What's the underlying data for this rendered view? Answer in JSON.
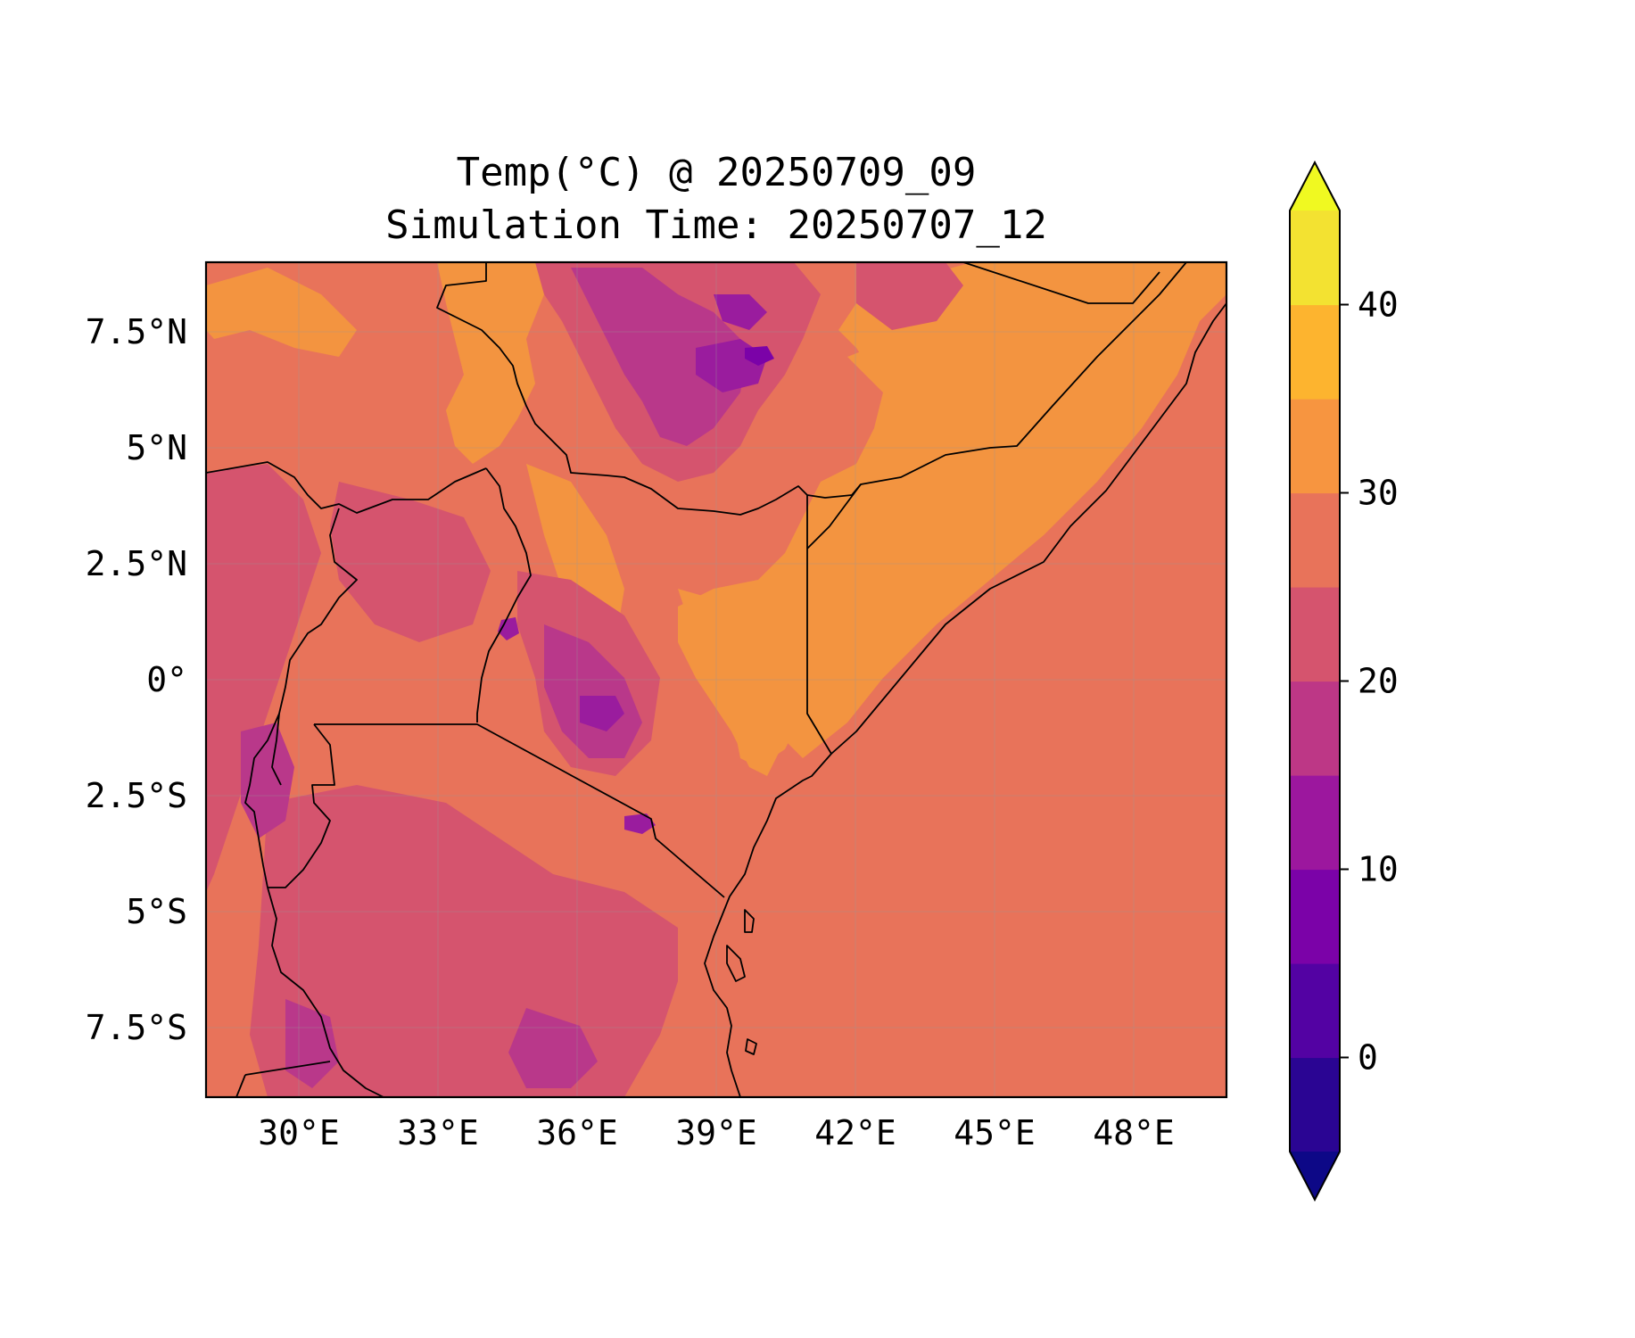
{
  "title": {
    "line1": "Temp(°C) @ 20250709_09",
    "line2": "Simulation Time: 20250707_12"
  },
  "map": {
    "lon_range": [
      28,
      50
    ],
    "lat_range": [
      -9,
      9
    ],
    "x_ticks": [
      {
        "value": 30,
        "label": "30°E"
      },
      {
        "value": 33,
        "label": "33°E"
      },
      {
        "value": 36,
        "label": "36°E"
      },
      {
        "value": 39,
        "label": "39°E"
      },
      {
        "value": 42,
        "label": "42°E"
      },
      {
        "value": 45,
        "label": "45°E"
      },
      {
        "value": 48,
        "label": "48°E"
      }
    ],
    "y_ticks": [
      {
        "value": 7.5,
        "label": "7.5°N"
      },
      {
        "value": 5,
        "label": "5°N"
      },
      {
        "value": 2.5,
        "label": "2.5°N"
      },
      {
        "value": 0,
        "label": "0°"
      },
      {
        "value": -2.5,
        "label": "2.5°S"
      },
      {
        "value": -5,
        "label": "5°S"
      },
      {
        "value": -7.5,
        "label": "7.5°S"
      }
    ],
    "gridlines": true,
    "colors": {
      "ocean": "#e8735a",
      "temp_25_30": "#e8735a",
      "temp_30_35": "#f39440",
      "temp_20_25": "#d5546e",
      "temp_15_20": "#b9388a",
      "temp_10_15": "#9a1c9e",
      "temp_5_10": "#7b02a8",
      "border": "#000000"
    }
  },
  "colorbar": {
    "min": -5,
    "max": 45,
    "extend": "both",
    "ticks": [
      {
        "value": 0,
        "label": "0"
      },
      {
        "value": 10,
        "label": "10"
      },
      {
        "value": 20,
        "label": "20"
      },
      {
        "value": 30,
        "label": "30"
      },
      {
        "value": 40,
        "label": "40"
      }
    ],
    "levels": [
      {
        "from": -5,
        "to": 0,
        "color": "#2a0593"
      },
      {
        "from": 0,
        "to": 5,
        "color": "#5302a3"
      },
      {
        "from": 5,
        "to": 10,
        "color": "#7b02a8"
      },
      {
        "from": 10,
        "to": 15,
        "color": "#9c179e"
      },
      {
        "from": 15,
        "to": 20,
        "color": "#bd3786"
      },
      {
        "from": 20,
        "to": 25,
        "color": "#d5546e"
      },
      {
        "from": 25,
        "to": 30,
        "color": "#e8735a"
      },
      {
        "from": 30,
        "to": 35,
        "color": "#f79540"
      },
      {
        "from": 35,
        "to": 40,
        "color": "#fdb42f"
      },
      {
        "from": 40,
        "to": 45,
        "color": "#f3e231"
      }
    ],
    "under_color": "#0d0887",
    "over_color": "#f0f921"
  }
}
